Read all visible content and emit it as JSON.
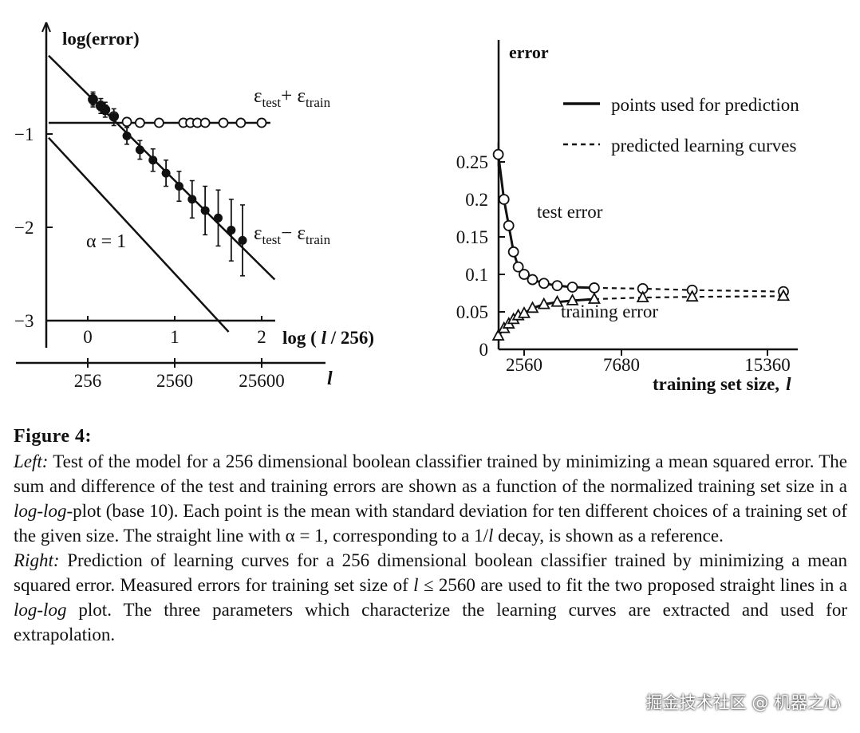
{
  "figure": {
    "left": {
      "y_axis_title": "log(error)",
      "y_ticks": [
        {
          "value": -1,
          "label": "−1"
        },
        {
          "value": -2,
          "label": "−2"
        },
        {
          "value": -3,
          "label": "−3"
        }
      ],
      "x_ticks": [
        {
          "value": 0,
          "label": "0"
        },
        {
          "value": 1,
          "label": "1"
        },
        {
          "value": 2,
          "label": "2"
        }
      ],
      "x_axis_title": "log ( l / 256)",
      "x2_ticks": [
        {
          "value": 0,
          "label": "256"
        },
        {
          "value": 1,
          "label": "2560"
        },
        {
          "value": 2,
          "label": "25600"
        }
      ],
      "x2_axis_title": "l",
      "series_sum_label": "ε_test + ε_train",
      "series_diff_label": "ε_test − ε_train",
      "reference_label": "α = 1"
    },
    "right": {
      "y_axis_title": "error",
      "y_ticks": [
        {
          "value": 0.25,
          "label": "0.25"
        },
        {
          "value": 0.2,
          "label": "0.2"
        },
        {
          "value": 0.15,
          "label": "0.15"
        },
        {
          "value": 0.1,
          "label": "0.1"
        },
        {
          "value": 0.05,
          "label": "0.05"
        },
        {
          "value": 0,
          "label": "0"
        }
      ],
      "x_ticks": [
        {
          "value": 2560,
          "label": "2560"
        },
        {
          "value": 7680,
          "label": "7680"
        },
        {
          "value": 15360,
          "label": "15360"
        }
      ],
      "x_axis_title": "training set size,",
      "x_axis_symbol": "l",
      "legend": {
        "solid": "points used for prediction",
        "dashed": "predicted learning curves"
      },
      "test_label": "test error",
      "train_label": "training error"
    }
  },
  "chart_data": [
    {
      "type": "scatter",
      "title": "",
      "xlabel": "log ( l / 256)",
      "ylabel": "log(error)",
      "xlim": [
        -0.45,
        2.45
      ],
      "ylim": [
        -3.25,
        -0.15
      ],
      "series": [
        {
          "name": "ε_test + ε_train",
          "points": [
            {
              "x": 0.06,
              "y": -0.63,
              "err": 0.06
            },
            {
              "x": 0.15,
              "y": -0.7,
              "err": 0.05
            },
            {
              "x": 0.2,
              "y": -0.74,
              "err": 0.05
            },
            {
              "x": 0.3,
              "y": -0.81,
              "err": 0.04
            },
            {
              "x": 0.45,
              "y": -0.87,
              "err": 0.04
            },
            {
              "x": 0.6,
              "y": -0.88,
              "err": 0.03
            },
            {
              "x": 0.82,
              "y": -0.88,
              "err": 0.03
            },
            {
              "x": 1.1,
              "y": -0.88,
              "err": 0.03
            },
            {
              "x": 1.18,
              "y": -0.88,
              "err": 0.03
            },
            {
              "x": 1.26,
              "y": -0.88,
              "err": 0.03
            },
            {
              "x": 1.35,
              "y": -0.88,
              "err": 0.03
            },
            {
              "x": 1.56,
              "y": -0.88,
              "err": 0.03
            },
            {
              "x": 1.76,
              "y": -0.88,
              "err": 0.03
            },
            {
              "x": 2.0,
              "y": -0.88,
              "err": 0.03
            }
          ]
        },
        {
          "name": "ε_test − ε_train",
          "points": [
            {
              "x": 0.06,
              "y": -0.63,
              "err": 0.08
            },
            {
              "x": 0.15,
              "y": -0.7,
              "err": 0.08
            },
            {
              "x": 0.2,
              "y": -0.74,
              "err": 0.08
            },
            {
              "x": 0.3,
              "y": -0.82,
              "err": 0.09
            },
            {
              "x": 0.45,
              "y": -1.02,
              "err": 0.09
            },
            {
              "x": 0.6,
              "y": -1.17,
              "err": 0.1
            },
            {
              "x": 0.75,
              "y": -1.28,
              "err": 0.12
            },
            {
              "x": 0.9,
              "y": -1.42,
              "err": 0.14
            },
            {
              "x": 1.05,
              "y": -1.56,
              "err": 0.16
            },
            {
              "x": 1.2,
              "y": -1.7,
              "err": 0.2
            },
            {
              "x": 1.35,
              "y": -1.82,
              "err": 0.26
            },
            {
              "x": 1.5,
              "y": -1.9,
              "err": 0.3
            },
            {
              "x": 1.65,
              "y": -2.03,
              "err": 0.33
            },
            {
              "x": 1.78,
              "y": -2.14,
              "err": 0.38
            }
          ]
        }
      ],
      "lines": [
        {
          "role": "constant fit",
          "x": [
            -0.45,
            2.1
          ],
          "y": [
            -0.88,
            -0.88
          ]
        },
        {
          "role": "slope fit",
          "x": [
            -0.45,
            2.15
          ],
          "y": [
            -0.16,
            -2.56
          ]
        },
        {
          "role": "α = 1",
          "x": [
            -0.45,
            1.62
          ],
          "y": [
            -1.04,
            -3.12
          ]
        }
      ]
    },
    {
      "type": "line",
      "title": "",
      "xlabel": "training set size, l",
      "ylabel": "error",
      "xlim": [
        0,
        18000
      ],
      "ylim": [
        0,
        0.28
      ],
      "series": [
        {
          "name": "test error",
          "x": [
            1200,
            1500,
            1750,
            2000,
            2250,
            2560,
            3000,
            3600,
            4300,
            5100,
            6250,
            8800,
            11400,
            16200
          ],
          "y": [
            0.26,
            0.2,
            0.165,
            0.13,
            0.11,
            0.1,
            0.093,
            0.088,
            0.085,
            0.083,
            0.082,
            0.081,
            0.079,
            0.077
          ],
          "y_err": [
            0.016,
            0.006,
            0.004,
            0.003,
            0.002,
            0.002,
            0.002,
            0.001,
            0.001,
            0.001,
            0.001,
            0.001,
            0.001,
            0.001
          ],
          "solid_until": 6250
        },
        {
          "name": "training error",
          "x": [
            1200,
            1500,
            1750,
            2000,
            2250,
            2560,
            3000,
            3600,
            4300,
            5100,
            6250,
            8800,
            11400,
            16200
          ],
          "y": [
            0.018,
            0.028,
            0.034,
            0.04,
            0.045,
            0.048,
            0.055,
            0.06,
            0.063,
            0.065,
            0.067,
            0.069,
            0.07,
            0.071
          ],
          "solid_until": 6250
        }
      ]
    }
  ],
  "caption": {
    "title": "Figure 4:",
    "left_heading": "Left:",
    "left_a": "Test of the model for a 256 dimensional boolean classifier trained by minimizing a mean squared error. The sum and difference of the test and training errors are shown as a function of the normalized training set size in a",
    "left_loglog": "log-log",
    "left_b": "-plot (base 10). Each point is the mean with standard deviation for ten different choices of a training set of the given size. The straight line with α = 1, corresponding to a 1/",
    "left_l": "l",
    "left_c": "decay, is shown as a reference.",
    "right_heading": "Right:",
    "right_a": "Prediction of learning curves for a 256 dimensional boolean classifier trained by minimizing a mean squared error. Measured errors for training set size of",
    "right_l": "l",
    "right_b": "≤ 2560 are used to fit the two proposed straight lines in a",
    "right_loglog": "log-log",
    "right_c": "plot. The three parameters which characterize the learning curves are extracted and used for extrapolation."
  },
  "watermark": "掘金技术社区 @ 机器之心"
}
